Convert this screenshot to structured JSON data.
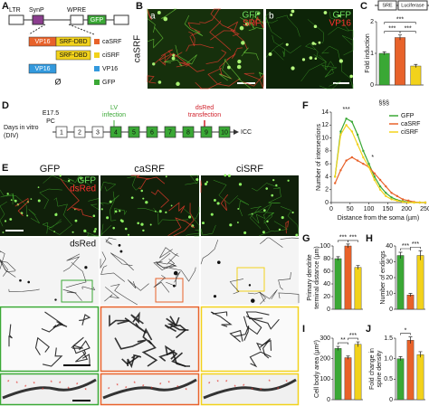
{
  "panel_labels": [
    "A",
    "B",
    "C",
    "D",
    "E",
    "F",
    "G",
    "H",
    "I",
    "J"
  ],
  "construct": {
    "ltr": "LTR",
    "synp": "SynP",
    "wpre": "WPRE",
    "gfp": "GFP",
    "variants": [
      {
        "parts": [
          "VP16",
          "SRF-DBD"
        ],
        "name": "caSRF"
      },
      {
        "parts": [
          "SRF-DBD"
        ],
        "name": "ciSRF"
      },
      {
        "parts": [
          "VP16"
        ],
        "name": "VP16"
      },
      {
        "parts": [
          "Ø"
        ],
        "name": "GFP"
      }
    ]
  },
  "images_b": {
    "row_label": "caSRF",
    "a": {
      "letter": "a",
      "green": "GFP",
      "red": "SRF"
    },
    "b": {
      "letter": "b",
      "green": "GFP",
      "red": "VP16"
    }
  },
  "reporter": {
    "sre": "SRE",
    "luc": "Luciferase"
  },
  "timeline": {
    "axis_label": [
      "Days in vitro",
      "(DIV)"
    ],
    "start": [
      "E17.5",
      "PC"
    ],
    "days": [
      "1",
      "2",
      "3",
      "4",
      "5",
      "6",
      "7",
      "8",
      "9",
      "10"
    ],
    "infection": [
      "LV",
      "infection"
    ],
    "transfection": [
      "dsRed",
      "transfection"
    ],
    "end": "ICC"
  },
  "images_e": {
    "columns": [
      "GFP",
      "caSRF",
      "ciSRF"
    ],
    "green": "GFP",
    "red": "dsRed",
    "row2": "dsRed"
  },
  "chart_data": [
    {
      "type": "bar",
      "ylabel": "Fold induction",
      "values": [
        1.0,
        1.5,
        0.6
      ],
      "errors": [
        0.05,
        0.08,
        0.05
      ],
      "colors": [
        "#3aa835",
        "#e8622a",
        "#f2d21b"
      ],
      "ylim": [
        0,
        2
      ],
      "yticks": [
        0,
        1,
        2
      ],
      "annotations": [
        {
          "text": "***",
          "bars": [
            0,
            1
          ]
        },
        {
          "text": "***",
          "bars": [
            1,
            2
          ]
        },
        {
          "text": "***",
          "bars": [
            0,
            2
          ]
        }
      ]
    },
    {
      "type": "line",
      "ylabel": "Number of intersections",
      "xlabel": "Distance from the soma (µm)",
      "x": [
        10,
        25,
        40,
        55,
        70,
        85,
        100,
        115,
        130,
        145,
        160,
        175,
        190,
        205,
        220,
        235,
        250
      ],
      "series": [
        {
          "name": "GFP",
          "color": "#3aa835",
          "values": [
            4,
            11,
            13,
            12.5,
            10.5,
            8,
            6,
            4,
            2.5,
            1.5,
            0.8,
            0.4,
            0.2,
            0.1,
            0,
            0,
            0
          ]
        },
        {
          "name": "caSRF",
          "color": "#e8622a",
          "values": [
            3,
            5,
            6.5,
            7,
            6.5,
            6,
            5.5,
            4.5,
            3.5,
            2.5,
            1.5,
            1,
            0.5,
            0.3,
            0.1,
            0,
            0
          ]
        },
        {
          "name": "ciSRF",
          "color": "#f2d21b",
          "values": [
            4,
            10.5,
            12,
            11,
            9,
            7,
            5.5,
            3.5,
            2,
            1,
            0.5,
            0.3,
            0.1,
            0,
            0,
            0,
            0
          ]
        }
      ],
      "xlim": [
        0,
        250
      ],
      "xticks": [
        0,
        50,
        100,
        150,
        200,
        250
      ],
      "ylim": [
        0,
        14
      ],
      "yticks": [
        0,
        2,
        4,
        6,
        8,
        10,
        12,
        14
      ],
      "annotations": [
        "***",
        "*",
        "§§§"
      ]
    },
    {
      "type": "bar",
      "ylabel": [
        "Primary dendrite",
        "terminal distance (µm)"
      ],
      "values": [
        80,
        100,
        66
      ],
      "errors": [
        3,
        3,
        3
      ],
      "colors": [
        "#3aa835",
        "#e8622a",
        "#f2d21b"
      ],
      "ylim": [
        0,
        100
      ],
      "yticks": [
        0,
        20,
        40,
        60,
        80,
        100
      ],
      "annotations": [
        {
          "text": "***",
          "bars": [
            0,
            1
          ]
        },
        {
          "text": "***",
          "bars": [
            1,
            2
          ]
        }
      ]
    },
    {
      "type": "bar",
      "ylabel": "Number of endings",
      "values": [
        34,
        9,
        34
      ],
      "errors": [
        2,
        1,
        3
      ],
      "colors": [
        "#3aa835",
        "#e8622a",
        "#f2d21b"
      ],
      "ylim": [
        0,
        40
      ],
      "yticks": [
        0,
        10,
        20,
        30,
        40
      ],
      "annotations": [
        {
          "text": "***",
          "bars": [
            0,
            1
          ]
        },
        {
          "text": "***",
          "bars": [
            1,
            2
          ]
        }
      ]
    },
    {
      "type": "bar",
      "ylabel": "Cell body area (µm²)",
      "values": [
        250,
        205,
        270
      ],
      "errors": [
        10,
        8,
        12
      ],
      "colors": [
        "#3aa835",
        "#e8622a",
        "#f2d21b"
      ],
      "ylim": [
        0,
        300
      ],
      "yticks": [
        0,
        100,
        200,
        300
      ],
      "annotations": [
        {
          "text": "**",
          "bars": [
            0,
            1
          ]
        },
        {
          "text": "***",
          "bars": [
            1,
            2
          ]
        }
      ]
    },
    {
      "type": "bar",
      "ylabel": [
        "Fold change in",
        "spine density"
      ],
      "values": [
        1.0,
        1.45,
        1.1
      ],
      "errors": [
        0.05,
        0.08,
        0.07
      ],
      "colors": [
        "#3aa835",
        "#e8622a",
        "#f2d21b"
      ],
      "ylim": [
        0,
        1.5
      ],
      "yticks": [
        0,
        0.5,
        {
          "value": 1,
          "label": "1.0"
        },
        1.5
      ],
      "annotations": [
        {
          "text": "*",
          "bars": [
            0,
            1
          ]
        }
      ]
    }
  ]
}
